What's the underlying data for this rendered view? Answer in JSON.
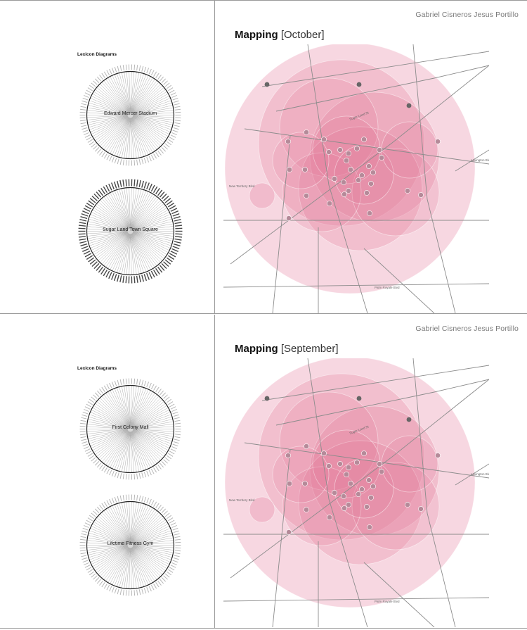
{
  "sheets": [
    {
      "id": "october",
      "author": "Gabriel Cisneros Jesus Portillo",
      "title_bold": "Mapping",
      "title_month": "[October]",
      "lexicon_title": "Lexicon Diagrams",
      "lexicons": [
        {
          "label": "Edward Mercer Stadium"
        },
        {
          "label": "Sugar Land Town Square"
        }
      ]
    },
    {
      "id": "september",
      "author": "Gabriel Cisneros Jesus Portillo",
      "title_bold": "Mapping",
      "title_month": "[September]",
      "lexicon_title": "Lexicon Diagrams",
      "lexicons": [
        {
          "label": "First Colony Mall"
        },
        {
          "label": "Lifetime Fitness Gym"
        }
      ]
    }
  ],
  "map_labels": {
    "lexington": "Lexington Blvd",
    "new_territory": "New Territory Blvd",
    "palm_royale": "Palm Royale Blvd",
    "sugar_land": "Sugar Land St"
  },
  "colors": {
    "bubble": "#e37c9a",
    "road": "#8c8c8c",
    "marker": "#9a8a90",
    "rule": "#9a9a9a"
  }
}
